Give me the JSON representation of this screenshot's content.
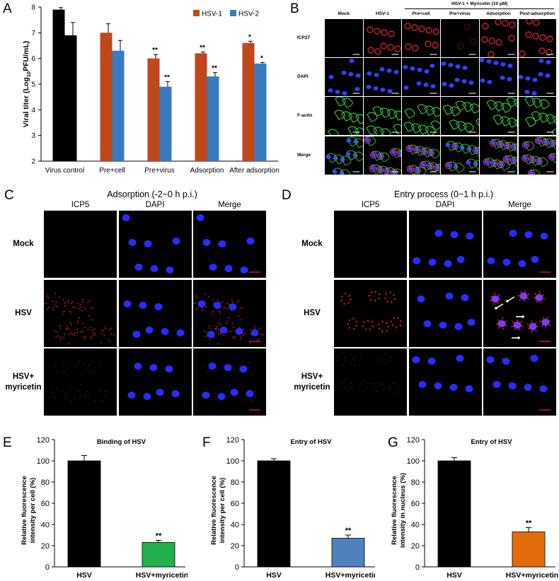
{
  "panels": {
    "A": {
      "letter": "A",
      "chart_data": {
        "type": "bar",
        "ylabel": "Viral titer (Log10PFU/mL)",
        "ylabel_main": "Viral titer (Log",
        "ylabel_sub": "10",
        "ylabel_end": "PFU/mL)",
        "ylim": [
          2,
          8
        ],
        "yticks": [
          "2",
          "3",
          "4",
          "5",
          "6",
          "7",
          "8"
        ],
        "categories": [
          "Virus control",
          "Pre+cell",
          "Pre+virus",
          "Adsorption",
          "After adsorption"
        ],
        "legend_position": "top-right",
        "series": [
          {
            "name": "HSV-1",
            "color": "#c0471b",
            "values": [
              7.9,
              7.0,
              6.0,
              6.2,
              6.6
            ],
            "errors": [
              0.08,
              0.35,
              0.15,
              0.05,
              0.07
            ],
            "sig": [
              "",
              "",
              "**",
              "**",
              "*"
            ]
          },
          {
            "name": "HSV-2",
            "color": "#3a7bbf",
            "values": [
              6.9,
              6.3,
              4.9,
              5.3,
              5.8
            ],
            "errors": [
              0.5,
              0.4,
              0.2,
              0.15,
              0.04
            ],
            "sig": [
              "",
              "",
              "**",
              "**",
              "*"
            ]
          }
        ],
        "control_color": "#000000"
      }
    },
    "B": {
      "letter": "B",
      "group_header": "HSV-1 + Myricetin (10 μM)",
      "columns": [
        "Mock",
        "HSV-1",
        "Pre+cell",
        "Pre+virus",
        "Adsorption",
        "Post-adsorption"
      ],
      "rows": [
        "ICP27",
        "DAPI",
        "F-actin",
        "Merge"
      ]
    },
    "C": {
      "letter": "C",
      "title": "Adsorption (-2~0 h p.i.)",
      "columns": [
        "ICP5",
        "DAPI",
        "Merge"
      ],
      "rows": [
        "Mock",
        "HSV",
        "HSV+\nmyricetin"
      ],
      "row_lines": [
        [
          "Mock"
        ],
        [
          "HSV"
        ],
        [
          "HSV+",
          "myricetin"
        ]
      ]
    },
    "D": {
      "letter": "D",
      "title": "Entry process (0~1 h p.i.)",
      "columns": [
        "ICP5",
        "DAPI",
        "Merge"
      ],
      "rows": [
        "Mock",
        "HSV",
        "HSV+\nmyricetin"
      ],
      "row_lines": [
        [
          "Mock"
        ],
        [
          "HSV"
        ],
        [
          "HSV+",
          "myricetin"
        ]
      ]
    },
    "E": {
      "letter": "E",
      "chart_data": {
        "type": "bar",
        "title": "Binding of HSV",
        "ylabel": "Relative fluorescence intensity per cell (%)",
        "ylabel_lines": [
          "Relative fluorescence",
          "intensity per cell (%)"
        ],
        "ylim": [
          0,
          120
        ],
        "yticks": [
          "0",
          "20",
          "40",
          "60",
          "80",
          "100",
          "120"
        ],
        "categories": [
          "HSV",
          "HSV+myricetin"
        ],
        "values": [
          100,
          23
        ],
        "errors": [
          5,
          2
        ],
        "colors": [
          "#000000",
          "#22b14c"
        ],
        "sig": [
          "",
          "**"
        ]
      }
    },
    "F": {
      "letter": "F",
      "chart_data": {
        "type": "bar",
        "title": "Entry of HSV",
        "ylabel": "Relative fluorescence intensity per cell (%)",
        "ylabel_lines": [
          "Relative fluorescence",
          "intensity per cell (%)"
        ],
        "ylim": [
          0,
          120
        ],
        "yticks": [
          "0",
          "20",
          "40",
          "60",
          "80",
          "100",
          "120"
        ],
        "categories": [
          "HSV",
          "HSV+myricetin"
        ],
        "values": [
          100,
          27
        ],
        "errors": [
          2,
          3
        ],
        "colors": [
          "#000000",
          "#4f81bd"
        ],
        "sig": [
          "",
          "**"
        ]
      }
    },
    "G": {
      "letter": "G",
      "chart_data": {
        "type": "bar",
        "title": "Entry of HSV",
        "ylabel": "Relative fluorescence intensity in nucleus (%)",
        "ylabel_lines": [
          "Relative fluorescence",
          "intensity in nucleus (%)"
        ],
        "ylim": [
          0,
          120
        ],
        "yticks": [
          "0",
          "20",
          "40",
          "60",
          "80",
          "100",
          "120"
        ],
        "categories": [
          "HSV",
          "HSV+myricetin"
        ],
        "values": [
          100,
          33
        ],
        "errors": [
          3,
          4
        ],
        "colors": [
          "#000000",
          "#e36c0a"
        ],
        "sig": [
          "",
          "**"
        ]
      }
    }
  }
}
